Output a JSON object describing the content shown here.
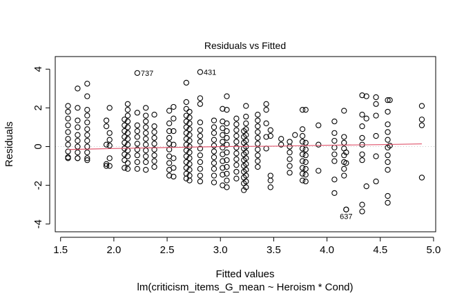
{
  "chart_data": {
    "type": "scatter",
    "title": "Residuals vs Fitted",
    "xlabel": "Fitted values",
    "subtitle": "lm(criticism_items_G_mean ~ Heroism * Cond)",
    "ylabel": "Residuals",
    "xlim": [
      1.45,
      5.02
    ],
    "ylim": [
      -4.4,
      4.65
    ],
    "xticks": [
      "1.5",
      "2.0",
      "2.5",
      "3.0",
      "3.5",
      "4.0",
      "4.5",
      "5.0"
    ],
    "xtick_values": [
      1.5,
      2.0,
      2.5,
      3.0,
      3.5,
      4.0,
      4.5,
      5.0
    ],
    "yticks": [
      "-4",
      "-2",
      "0",
      "2",
      "4"
    ],
    "ytick_values": [
      -4,
      -2,
      0,
      2,
      4
    ],
    "reference_line_y": 0,
    "columns": [
      {
        "x": 1.57,
        "y": [
          2.1,
          1.8,
          1.45,
          1.1,
          0.75,
          0.4,
          0.1,
          -0.25,
          -0.55,
          -0.6
        ]
      },
      {
        "x": 1.66,
        "y": [
          3.0,
          2.0,
          1.35,
          1.0,
          0.6,
          0.3,
          0.0,
          -0.3,
          -0.6,
          -0.6
        ]
      },
      {
        "x": 1.75,
        "y": [
          3.25,
          2.6,
          1.9,
          1.6,
          1.25,
          0.9,
          0.6,
          0.3,
          0.0,
          -0.3,
          -0.6,
          -0.7
        ]
      },
      {
        "x": 1.93,
        "y": [
          1.35,
          1.05,
          0.1,
          -0.9,
          -1.0
        ]
      },
      {
        "x": 1.96,
        "y": [
          2.0,
          0.7,
          0.35,
          0.05,
          -0.6,
          -1.0
        ]
      },
      {
        "x": 2.1,
        "y": [
          1.4,
          1.1,
          0.8,
          0.5,
          0.2,
          -0.1,
          -0.4,
          -0.7,
          -1.1
        ]
      },
      {
        "x": 2.13,
        "y": [
          2.2,
          1.9,
          1.6,
          1.3,
          1.0,
          0.7,
          0.4,
          0.1,
          -0.2,
          -0.5,
          -0.85,
          -1.15
        ]
      },
      {
        "x": 2.22,
        "y": [
          1.75,
          1.1,
          0.8,
          0.5,
          0.15,
          -0.15,
          -0.45,
          -0.8,
          -1.15
        ]
      },
      {
        "x": 2.3,
        "y": [
          2.0,
          1.6,
          1.3,
          1.0,
          0.7,
          0.4,
          0.1,
          -0.2,
          -0.5,
          -0.8,
          -1.2
        ]
      },
      {
        "x": 2.38,
        "y": [
          1.65,
          1.05,
          0.75,
          0.45,
          0.15,
          -0.15,
          -0.45,
          -0.75,
          -1.05
        ]
      },
      {
        "x": 2.52,
        "y": [
          1.85,
          1.2,
          0.8,
          0.45,
          0.15,
          -0.15,
          -0.5,
          -0.85,
          -1.2,
          -1.5
        ]
      },
      {
        "x": 2.56,
        "y": [
          2.05,
          1.45,
          0.8,
          0.1,
          -0.6,
          -1.1,
          -1.55
        ]
      },
      {
        "x": 2.68,
        "y": [
          3.3,
          2.3,
          1.95,
          1.6,
          1.3,
          1.0,
          0.7,
          0.4,
          0.1,
          -0.2,
          -0.5,
          -0.8,
          -1.1,
          -1.4,
          -1.65
        ]
      },
      {
        "x": 2.71,
        "y": [
          1.8,
          1.5,
          1.2,
          0.9,
          0.6,
          0.3,
          0.0,
          -0.3,
          -0.6,
          -0.9,
          -1.2,
          -1.5,
          -1.75
        ]
      },
      {
        "x": 2.81,
        "y": [
          2.5,
          2.2,
          1.25,
          0.85,
          0.55,
          0.25,
          -0.1,
          -0.45,
          -0.8,
          -1.15,
          -1.5,
          -1.8
        ]
      },
      {
        "x": 2.94,
        "y": [
          1.35,
          1.0,
          0.7,
          0.35,
          0.05,
          -0.25,
          -0.55,
          -0.85,
          -1.15,
          -1.5,
          -1.85
        ]
      },
      {
        "x": 3.02,
        "y": [
          1.95,
          1.3,
          0.95,
          0.6,
          0.25,
          -0.05,
          -0.4,
          -0.75,
          -1.1,
          -1.45,
          -2.0
        ]
      },
      {
        "x": 3.06,
        "y": [
          2.6,
          1.9,
          1.2,
          0.8,
          0.45,
          0.1,
          -0.3,
          -0.7,
          -1.05,
          -1.4,
          -1.75,
          -2.1
        ]
      },
      {
        "x": 3.15,
        "y": [
          1.45,
          1.15,
          0.85,
          0.55,
          0.25,
          -0.05,
          -0.35,
          -0.65,
          -0.95,
          -1.3,
          -1.65
        ]
      },
      {
        "x": 3.22,
        "y": [
          0.8,
          0.5,
          0.2,
          -0.1,
          -0.4,
          -0.7,
          -1.0,
          -1.3,
          -1.6,
          -1.9,
          -2.25
        ]
      },
      {
        "x": 3.24,
        "y": [
          2.1,
          1.55,
          1.2,
          0.9,
          0.6,
          0.3,
          0.0,
          -0.3,
          -0.6,
          -0.9,
          -1.2,
          -1.5,
          -1.8,
          -2.1
        ]
      },
      {
        "x": 3.35,
        "y": [
          1.65,
          1.35,
          1.05,
          0.75,
          0.45,
          0.15,
          -0.15,
          -0.45,
          -0.75,
          -1.05
        ]
      },
      {
        "x": 3.43,
        "y": [
          2.2,
          1.9,
          1.2,
          0.5,
          -0.1
        ]
      },
      {
        "x": 3.47,
        "y": [
          0.85,
          0.55,
          -1.5,
          -1.75,
          -2.1
        ]
      },
      {
        "x": 3.57,
        "y": [
          0.4,
          0.1
        ]
      },
      {
        "x": 3.65,
        "y": [
          0.25,
          0.0,
          -0.3,
          -0.65,
          -1.0,
          -1.35
        ]
      },
      {
        "x": 3.7,
        "y": [
          0.6
        ]
      },
      {
        "x": 3.77,
        "y": [
          1.9,
          0.9,
          0.55,
          0.25,
          -0.1,
          -0.4,
          -0.75,
          -1.1,
          -1.4,
          -1.75
        ]
      },
      {
        "x": 3.8,
        "y": [
          1.9,
          0.2,
          -0.15,
          -0.45,
          -0.8,
          -1.15,
          -1.45,
          -1.8
        ]
      },
      {
        "x": 3.92,
        "y": [
          1.1,
          0.1,
          -1.25
        ]
      },
      {
        "x": 4.07,
        "y": [
          1.3,
          0.7,
          0.3,
          -0.05,
          -0.4,
          -0.75,
          -1.7,
          -2.4
        ]
      },
      {
        "x": 4.16,
        "y": [
          1.85,
          0.5,
          0.2,
          -0.1,
          -0.45,
          -0.8,
          -1.15,
          -1.5
        ]
      },
      {
        "x": 4.18,
        "y": [
          -0.3,
          -0.85,
          -3.25
        ]
      },
      {
        "x": 4.33,
        "y": [
          2.65,
          1.65,
          1.05,
          0.45,
          0.1,
          -0.4,
          -0.7,
          -3.0,
          -3.35
        ]
      },
      {
        "x": 4.37,
        "y": [
          2.6,
          1.45,
          -2.05
        ]
      },
      {
        "x": 4.46,
        "y": [
          2.55,
          2.2,
          1.6,
          0.55,
          -0.5,
          -1.8
        ]
      },
      {
        "x": 4.57,
        "y": [
          2.4,
          1.8,
          1.15,
          0.75,
          0.35,
          -0.05,
          -0.45,
          -0.8,
          -1.2,
          -2.55,
          -2.9
        ]
      },
      {
        "x": 4.59,
        "y": [
          2.4,
          0.05
        ]
      },
      {
        "x": 4.89,
        "y": [
          2.1,
          1.4,
          1.1,
          -1.6
        ]
      }
    ],
    "labeled_points": [
      {
        "label": "737",
        "x": 2.22,
        "y": 3.8
      },
      {
        "label": "431",
        "x": 2.81,
        "y": 3.85
      },
      {
        "label": "637",
        "x": 4.18,
        "y": -3.25
      }
    ],
    "smooth_line": {
      "color": "#df536b",
      "x": [
        1.57,
        2.0,
        2.5,
        3.0,
        3.5,
        4.0,
        4.5,
        4.89
      ],
      "y": [
        -0.15,
        -0.1,
        -0.05,
        0.0,
        0.02,
        0.07,
        0.1,
        0.14
      ]
    },
    "colors": {
      "points": "#000000",
      "smooth": "#df536b",
      "reference": "#c8c8c8"
    }
  }
}
